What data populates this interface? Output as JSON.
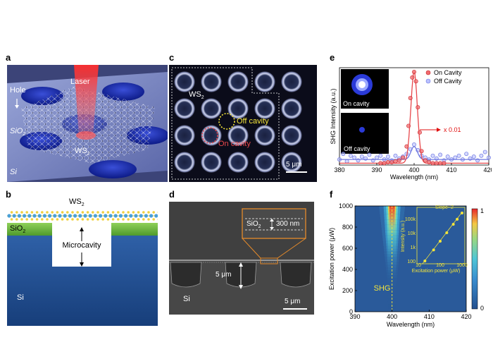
{
  "panel_labels": {
    "a": "a",
    "b": "b",
    "c": "c",
    "d": "d",
    "e": "e",
    "f": "f"
  },
  "panel_a": {
    "hole": "Hole",
    "laser": "Laser",
    "sio2": "SiO",
    "sio2_sub": "2",
    "ws2": "WS",
    "ws2_sub": "2",
    "si": "Si"
  },
  "panel_b": {
    "ws2": "WS",
    "ws2_sub": "2",
    "sio2": "SiO",
    "sio2_sub": "2",
    "microcavity": "Microcavity",
    "si": "Si"
  },
  "panel_c": {
    "ws2": "WS",
    "ws2_sub": "2",
    "off_cavity": "Off cavity",
    "on_cavity": "On cavity",
    "scale": "5 μm"
  },
  "panel_d": {
    "sio2": "SiO",
    "sio2_sub": "2",
    "thickness": "300 nm",
    "depth": "5 μm",
    "si": "Si",
    "scale": "5 μm"
  },
  "colors": {
    "on_cavity": "#e8474b",
    "off_cavity": "#6f78e0",
    "sio2_green": "#6cb43c",
    "si_blue": "#1f4c8f"
  },
  "chart_data": [
    {
      "type": "line",
      "panel": "e",
      "xlabel": "Wavelength (nm)",
      "ylabel": "SHG Intensity (a.u.)",
      "xlim": [
        380,
        420
      ],
      "xticks": [
        "380",
        "390",
        "400",
        "410",
        "420"
      ],
      "legend": [
        "On Cavity",
        "Off Cavity"
      ],
      "legend_position": "top-right",
      "annotation": "x 0.01",
      "inset_labels": [
        "On cavity",
        "Off cavity"
      ],
      "series": [
        {
          "name": "On Cavity",
          "x": [
            391,
            392,
            393,
            394,
            395,
            396,
            397,
            398,
            398.5,
            399,
            399.5,
            400,
            400.5,
            401,
            401.5,
            402,
            403,
            404,
            405,
            406,
            407,
            408
          ],
          "y": [
            0.02,
            0.02,
            0.03,
            0.03,
            0.04,
            0.05,
            0.08,
            0.2,
            0.42,
            0.72,
            0.94,
            1.0,
            0.9,
            0.62,
            0.35,
            0.15,
            0.05,
            0.03,
            0.02,
            0.02,
            0.02,
            0.02
          ]
        },
        {
          "name": "Off Cavity",
          "x": [
            380,
            381,
            382,
            383,
            384,
            385,
            386,
            387,
            388,
            389,
            390,
            391,
            392,
            393,
            394,
            395,
            396,
            397,
            398,
            399,
            400,
            401,
            402,
            403,
            404,
            405,
            406,
            407,
            408,
            409,
            410,
            411,
            412,
            413,
            414,
            415,
            416,
            417,
            418,
            419,
            420
          ],
          "y": [
            0.06,
            0.12,
            0.04,
            0.1,
            0.08,
            0.05,
            0.09,
            0.07,
            0.11,
            0.05,
            0.08,
            0.1,
            0.06,
            0.09,
            0.05,
            0.1,
            0.07,
            0.09,
            0.12,
            0.17,
            0.22,
            0.16,
            0.1,
            0.08,
            0.06,
            0.1,
            0.07,
            0.11,
            0.05,
            0.09,
            0.06,
            0.08,
            0.1,
            0.06,
            0.12,
            0.07,
            0.09,
            0.05,
            0.1,
            0.14,
            0.08
          ]
        }
      ]
    },
    {
      "type": "heatmap",
      "panel": "f",
      "xlabel": "Wavelength (nm)",
      "ylabel": "Excitation power (μW)",
      "xlim": [
        390,
        420
      ],
      "ylim": [
        0,
        1000
      ],
      "xticks": [
        "390",
        "400",
        "410",
        "420"
      ],
      "yticks": [
        "0",
        "200",
        "400",
        "600",
        "800",
        "1000"
      ],
      "peak_wavelength": 400,
      "annotation": "SHG",
      "colorbar_ticks": [
        "1",
        "0"
      ],
      "inset": {
        "type": "scatter",
        "xlabel": "Excitation power (μW)",
        "ylabel": "Intensity (a.u.)",
        "xscale": "log",
        "yscale": "log",
        "xticks": [
          "10",
          "100",
          "1000"
        ],
        "yticks": [
          "100",
          "1k",
          "10k",
          "100k"
        ],
        "annotation": "Slope~2",
        "x": [
          20,
          50,
          100,
          200,
          400,
          600,
          1000
        ],
        "y": [
          100,
          600,
          2500,
          10000,
          40000,
          90000,
          250000
        ]
      }
    }
  ]
}
